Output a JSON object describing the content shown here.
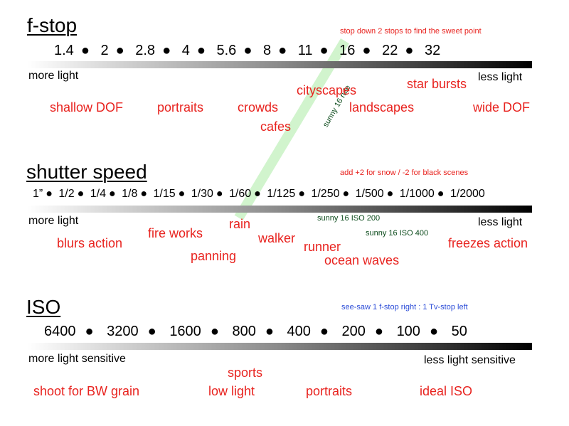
{
  "fstop": {
    "title": "f-stop",
    "values": [
      "1.4",
      "2",
      "2.8",
      "4",
      "5.6",
      "8",
      "11",
      "16",
      "22",
      "32"
    ],
    "more": "more light",
    "less": "less light",
    "note": "stop down 2 stops to find the sweet point",
    "uses": {
      "shallow": "shallow DOF",
      "portraits": "portraits",
      "crowds": "crowds",
      "cafes": "cafes",
      "cityscapes": "cityscapes",
      "landscapes": "landscapes",
      "starbursts": "star bursts",
      "wide": "wide DOF"
    }
  },
  "shutter": {
    "title": "shutter speed",
    "values": [
      "1”",
      "1/2",
      "1/4",
      "1/8",
      "1/15",
      "1/30",
      "1/60",
      "1/125",
      "1/250",
      "1/500",
      "1/1000",
      "1/2000"
    ],
    "more": "more light",
    "less": "less light",
    "note": "add +2 for snow / -2 for black scenes",
    "sunny200": "sunny 16 ISO 200",
    "sunny400": "sunny 16 ISO 400",
    "uses": {
      "blurs": "blurs action",
      "fireworks": "fire works",
      "rain": "rain",
      "panning": "panning",
      "walker": "walker",
      "runner": "runner",
      "ocean": "ocean waves",
      "freezes": "freezes action"
    }
  },
  "iso": {
    "title": "ISO",
    "values": [
      "6400",
      "3200",
      "1600",
      "800",
      "400",
      "200",
      "100",
      "50"
    ],
    "more": "more light sensitive",
    "less": "less light sensitive",
    "note": "see-saw 1 f-stop right : 1 Tv-stop left",
    "uses": {
      "grain": "shoot for BW grain",
      "sports": "sports",
      "lowlight": "low light",
      "portraits": "portraits",
      "ideal": "ideal ISO"
    }
  },
  "sunny16": "sunny 16 rule",
  "colors": {
    "accent": "#e8231f",
    "green_note": "#0a4a1a",
    "blue_note": "#2a4bd7",
    "band": "#c9f2c4"
  }
}
